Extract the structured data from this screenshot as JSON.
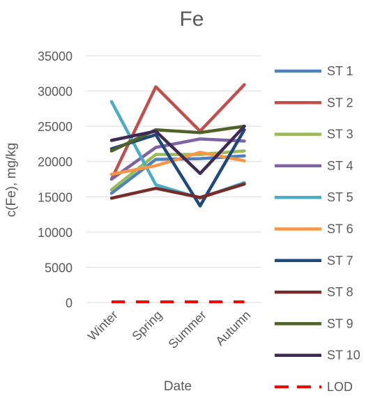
{
  "chart_data": {
    "type": "line",
    "title": "Fe",
    "xlabel": "Date",
    "ylabel": "c(Fe), mg/kg",
    "categories": [
      "Winter",
      "Spring",
      "Summer",
      "Autumn"
    ],
    "ylim": [
      0,
      35000
    ],
    "yticks": [
      0,
      5000,
      10000,
      15000,
      20000,
      25000,
      30000,
      35000
    ],
    "grid": true,
    "legend_position": "right",
    "series": [
      {
        "name": "ST 1",
        "color": "#4F81BD",
        "values": [
          15500,
          20300,
          20400,
          20800
        ]
      },
      {
        "name": "ST 2",
        "color": "#C0504D",
        "values": [
          17500,
          30600,
          24300,
          30900
        ]
      },
      {
        "name": "ST 3",
        "color": "#9BBB59",
        "values": [
          16000,
          21000,
          21000,
          21500
        ]
      },
      {
        "name": "ST 4",
        "color": "#8064A2",
        "values": [
          17500,
          22000,
          23200,
          22900
        ]
      },
      {
        "name": "ST 5",
        "color": "#4BACC6",
        "values": [
          28500,
          16700,
          14800,
          17000
        ]
      },
      {
        "name": "ST 6",
        "color": "#F79646",
        "values": [
          18200,
          19400,
          21300,
          20100
        ]
      },
      {
        "name": "ST 7",
        "color": "#1F497D",
        "values": [
          21800,
          23800,
          13700,
          24500
        ]
      },
      {
        "name": "ST 8",
        "color": "#772C2A",
        "values": [
          14800,
          16200,
          14900,
          16800
        ]
      },
      {
        "name": "ST 9",
        "color": "#4F6228",
        "values": [
          21500,
          24500,
          24100,
          25000
        ]
      },
      {
        "name": "ST 10",
        "color": "#3F2A54",
        "values": [
          23000,
          24300,
          18300,
          25000
        ]
      },
      {
        "name": "LOD",
        "color": "#FF0000",
        "dashed": true,
        "values": [
          100,
          100,
          100,
          100
        ]
      }
    ]
  }
}
